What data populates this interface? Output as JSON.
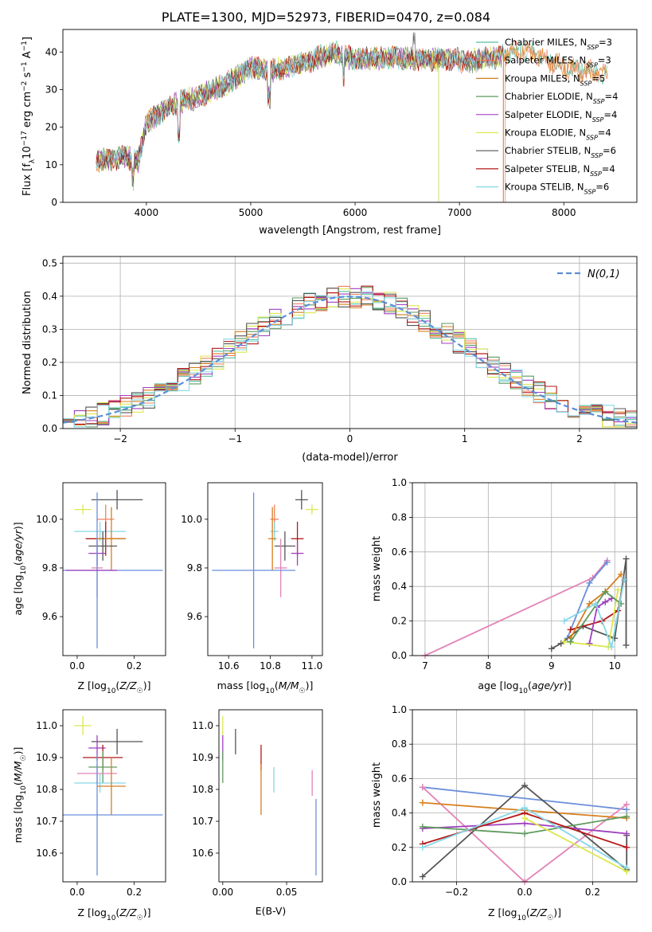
{
  "title": "PLATE=1300, MJD=52973, FIBERID=0470, z=0.084",
  "colors": {
    "chabrier_miles": "#55c1a5",
    "salpeter_miles": "#f07f61",
    "kroupa_miles": "#d67f1e",
    "chabrier_elodie": "#5f9a5f",
    "salpeter_elodie": "#a03fbf",
    "kroupa_elodie": "#dbe84f",
    "chabrier_stelib": "#555555",
    "salpeter_stelib": "#b41818",
    "kroupa_stelib": "#86d8e6",
    "line_blue": "#6a8fdb",
    "line_pink": "#e383b6",
    "normal_curve": "#5b8fd6"
  },
  "chart_data": [
    {
      "id": "spectrum",
      "type": "line",
      "title": "PLATE=1300, MJD=52973, FIBERID=0470, z=0.084",
      "xlabel": "wavelength [Angstrom, rest frame]",
      "ylabel": "Flux [f_λ10^-17 erg cm^-2 s^-1 A^-1]",
      "xlim": [
        3200,
        8700
      ],
      "ylim": [
        0,
        46
      ],
      "xticks": [
        4000,
        5000,
        6000,
        7000,
        8000
      ],
      "yticks": [
        0,
        10,
        20,
        30,
        40
      ],
      "grid": false,
      "legend_position": "top-right",
      "continuum": {
        "x": [
          3520,
          3800,
          3920,
          4000,
          4200,
          4350,
          4500,
          4800,
          5000,
          5200,
          5500,
          5800,
          6000,
          6300,
          6600,
          6900,
          7100,
          7400,
          7600,
          8000,
          8400
        ],
        "y": [
          11,
          12,
          11,
          21,
          25,
          27,
          28,
          32,
          36,
          35,
          37,
          40,
          38,
          38.5,
          38,
          38,
          37.5,
          39,
          40.5,
          36,
          34
        ]
      },
      "series": [
        {
          "name": "Chabrier MILES",
          "nssp": "3",
          "color_key": "chabrier_miles"
        },
        {
          "name": "Salpeter MILES",
          "nssp": "3",
          "color_key": "salpeter_miles"
        },
        {
          "name": "Kroupa MILES",
          "nssp": "5",
          "color_key": "kroupa_miles"
        },
        {
          "name": "Chabrier ELODIE",
          "nssp": "4",
          "color_key": "chabrier_elodie"
        },
        {
          "name": "Salpeter ELODIE",
          "nssp": "4",
          "color_key": "salpeter_elodie"
        },
        {
          "name": "Kroupa ELODIE",
          "nssp": "4",
          "color_key": "kroupa_elodie"
        },
        {
          "name": "Chabrier STELIB",
          "nssp": "6",
          "color_key": "chabrier_stelib"
        },
        {
          "name": "Salpeter STELIB",
          "nssp": "4",
          "color_key": "salpeter_stelib"
        },
        {
          "name": "Kroupa STELIB",
          "nssp": "6",
          "color_key": "kroupa_stelib"
        }
      ]
    },
    {
      "id": "residuals",
      "type": "line",
      "xlabel": "(data-model)/error",
      "ylabel": "Normed distribution",
      "xlim": [
        -2.5,
        2.5
      ],
      "ylim": [
        0,
        0.52
      ],
      "xticks": [
        -2,
        -1,
        0,
        1,
        2
      ],
      "xticklabels": [
        "−2",
        "−1",
        "0",
        "1",
        "2"
      ],
      "yticks": [
        0.0,
        0.1,
        0.2,
        0.3,
        0.4,
        0.5
      ],
      "yticklabels": [
        "0.0",
        "0.1",
        "0.2",
        "0.3",
        "0.4",
        "0.5"
      ],
      "grid": true,
      "legend_position": "top-right",
      "normal_label": "N(0,1)",
      "bin_width": 0.1,
      "histogram_series": [
        "chabrier_miles",
        "salpeter_miles",
        "kroupa_miles",
        "chabrier_elodie",
        "salpeter_elodie",
        "kroupa_elodie",
        "chabrier_stelib",
        "salpeter_stelib",
        "kroupa_stelib"
      ]
    },
    {
      "id": "z-age",
      "type": "scatter",
      "xlabel": "Z [log10(Z/Z☉)]",
      "ylabel": "age [log10(age/yr)]",
      "xlim": [
        -0.05,
        0.31
      ],
      "ylim": [
        9.44,
        10.15
      ],
      "xticks": [
        0.0,
        0.2
      ],
      "yticks": [
        9.6,
        9.8,
        10.0
      ],
      "points": [
        {
          "c": "chabrier_stelib",
          "x": 0.14,
          "xe": 0.09,
          "y": 10.08,
          "ye": 0.04
        },
        {
          "c": "kroupa_elodie",
          "x": 0.02,
          "xe": 0.03,
          "y": 10.04,
          "ye": 0.02
        },
        {
          "c": "salpeter_miles",
          "x": 0.1,
          "xe": 0.03,
          "y": 10.0,
          "ye": 0.06
        },
        {
          "c": "kroupa_stelib",
          "x": 0.08,
          "xe": 0.09,
          "y": 9.95,
          "ye": 0.04
        },
        {
          "c": "salpeter_stelib",
          "x": 0.1,
          "xe": 0.07,
          "y": 9.92,
          "ye": 0.07
        },
        {
          "c": "kroupa_miles",
          "x": 0.12,
          "xe": 0.05,
          "y": 9.92,
          "ye": 0.13
        },
        {
          "c": "chabrier_stelib",
          "x": 0.09,
          "xe": 0.05,
          "y": 9.89,
          "ye": 0.06
        },
        {
          "c": "salpeter_elodie",
          "x": 0.07,
          "xe": 0.03,
          "y": 9.86,
          "ye": 0.05
        },
        {
          "c": "line_pink",
          "x": 0.07,
          "xe": 0.02,
          "y": 9.8,
          "ye": 0.12
        },
        {
          "c": "line_blue",
          "x": 0.07,
          "xe": 0.23,
          "y": 9.79,
          "ye": 0.32
        },
        {
          "c": "salpeter_elodie",
          "x": 0.05,
          "xe": 0.09,
          "y": 9.79,
          "ye": 0.0
        }
      ]
    },
    {
      "id": "mass-age",
      "type": "scatter",
      "xlabel": "mass [log10(M/M☉)]",
      "ylabel": "",
      "xlim": [
        10.5,
        11.05
      ],
      "ylim": [
        9.44,
        10.15
      ],
      "xticks": [
        10.6,
        10.8,
        11.0
      ],
      "yticks": [
        9.6,
        9.8,
        10.0
      ],
      "points": [
        {
          "c": "chabrier_stelib",
          "x": 10.95,
          "xe": 0.03,
          "y": 10.08,
          "ye": 0.04
        },
        {
          "c": "kroupa_elodie",
          "x": 11.0,
          "xe": 0.03,
          "y": 10.04,
          "ye": 0.02
        },
        {
          "c": "salpeter_miles",
          "x": 10.82,
          "xe": 0.02,
          "y": 10.0,
          "ye": 0.06
        },
        {
          "c": "kroupa_stelib",
          "x": 10.82,
          "xe": 0.02,
          "y": 9.95,
          "ye": 0.04
        },
        {
          "c": "kroupa_miles",
          "x": 10.81,
          "xe": 0.02,
          "y": 9.92,
          "ye": 0.13
        },
        {
          "c": "salpeter_stelib",
          "x": 10.93,
          "xe": 0.03,
          "y": 9.92,
          "ye": 0.07
        },
        {
          "c": "chabrier_stelib",
          "x": 10.87,
          "xe": 0.05,
          "y": 9.89,
          "ye": 0.06
        },
        {
          "c": "salpeter_elodie",
          "x": 10.93,
          "xe": 0.03,
          "y": 9.86,
          "ye": 0.05
        },
        {
          "c": "line_pink",
          "x": 10.85,
          "xe": 0.03,
          "y": 9.8,
          "ye": 0.12
        },
        {
          "c": "line_blue",
          "x": 10.72,
          "xe": 0.2,
          "y": 9.79,
          "ye": 0.32
        }
      ]
    },
    {
      "id": "age-weight",
      "type": "line",
      "xlabel": "age [log10(age/yr)]",
      "ylabel": "mass weight",
      "xlim": [
        6.8,
        10.35
      ],
      "ylim": [
        0,
        1.0
      ],
      "xticks": [
        7,
        8,
        9,
        10
      ],
      "yticks": [
        0.0,
        0.2,
        0.4,
        0.6,
        0.8,
        1.0
      ],
      "grid": true,
      "series": [
        {
          "c": "line_pink",
          "x": [
            7.0,
            9.65,
            9.88
          ],
          "y": [
            0.0,
            0.45,
            0.55
          ]
        },
        {
          "c": "line_blue",
          "x": [
            9.25,
            9.6,
            9.88
          ],
          "y": [
            0.1,
            0.42,
            0.54
          ]
        },
        {
          "c": "chabrier_stelib",
          "x": [
            9.0,
            9.15,
            9.5,
            10.0,
            10.18,
            10.18
          ],
          "y": [
            0.04,
            0.07,
            0.17,
            0.1,
            0.56,
            0.06
          ]
        },
        {
          "c": "salpeter_stelib",
          "x": [
            9.3,
            9.8,
            10.05,
            10.15
          ],
          "y": [
            0.15,
            0.2,
            0.26,
            0.44
          ]
        },
        {
          "c": "kroupa_miles",
          "x": [
            9.3,
            9.6,
            9.85,
            10.1
          ],
          "y": [
            0.1,
            0.3,
            0.37,
            0.47
          ]
        },
        {
          "c": "salpeter_elodie",
          "x": [
            9.6,
            9.72,
            9.85,
            9.95
          ],
          "y": [
            0.07,
            0.28,
            0.31,
            0.33
          ]
        },
        {
          "c": "kroupa_elodie",
          "x": [
            9.2,
            9.9,
            10.05
          ],
          "y": [
            0.08,
            0.05,
            0.38
          ]
        },
        {
          "c": "chabrier_elodie",
          "x": [
            9.3,
            9.85,
            10.1
          ],
          "y": [
            0.08,
            0.37,
            0.3
          ]
        },
        {
          "c": "kroupa_stelib",
          "x": [
            9.2,
            9.7,
            9.95,
            10.15
          ],
          "y": [
            0.2,
            0.3,
            0.05,
            0.44
          ]
        }
      ]
    },
    {
      "id": "z-mass",
      "type": "scatter",
      "xlabel": "Z [log10(Z/Z☉)]",
      "ylabel": "mass [log10(M/M☉)]",
      "xlim": [
        -0.05,
        0.31
      ],
      "ylim": [
        10.51,
        11.05
      ],
      "xticks": [
        0.0,
        0.2
      ],
      "yticks": [
        10.6,
        10.7,
        10.8,
        10.9,
        11.0
      ],
      "points": [
        {
          "c": "kroupa_elodie",
          "x": 0.02,
          "xe": 0.03,
          "y": 11.0,
          "ye": 0.03
        },
        {
          "c": "chabrier_stelib",
          "x": 0.14,
          "xe": 0.09,
          "y": 10.95,
          "ye": 0.04
        },
        {
          "c": "salpeter_elodie",
          "x": 0.07,
          "xe": 0.03,
          "y": 10.93,
          "ye": 0.04
        },
        {
          "c": "salpeter_stelib",
          "x": 0.09,
          "xe": 0.07,
          "y": 10.9,
          "ye": 0.04
        },
        {
          "c": "chabrier_elodie",
          "x": 0.09,
          "xe": 0.05,
          "y": 10.87,
          "ye": 0.05
        },
        {
          "c": "line_pink",
          "x": 0.07,
          "xe": 0.07,
          "y": 10.85,
          "ye": 0.03
        },
        {
          "c": "kroupa_stelib",
          "x": 0.08,
          "xe": 0.09,
          "y": 10.82,
          "ye": 0.03
        },
        {
          "c": "kroupa_miles",
          "x": 0.12,
          "xe": 0.05,
          "y": 10.81,
          "ye": 0.09
        },
        {
          "c": "line_blue",
          "x": 0.07,
          "xe": 0.23,
          "y": 10.72,
          "ye": 0.19
        }
      ]
    },
    {
      "id": "ebv-mass",
      "type": "scatter",
      "xlabel": "E(B-V)",
      "ylabel": "",
      "xlim": [
        -0.003,
        0.078
      ],
      "ylim": [
        10.51,
        11.05
      ],
      "xticks": [
        0.0,
        0.05
      ],
      "xticklabels": [
        "0.00",
        "0.05"
      ],
      "yticks": [
        10.6,
        10.7,
        10.8,
        10.9,
        11.0
      ],
      "points": [
        {
          "c": "kroupa_elodie",
          "x": 0.0,
          "xe": 0,
          "y": 11.0,
          "ye": 0.03
        },
        {
          "c": "salpeter_elodie",
          "x": 0.0,
          "xe": 0,
          "y": 10.93,
          "ye": 0.04
        },
        {
          "c": "chabrier_elodie",
          "x": 0.0,
          "xe": 0,
          "y": 10.87,
          "ye": 0.05
        },
        {
          "c": "chabrier_stelib",
          "x": 0.01,
          "xe": 0,
          "y": 10.95,
          "ye": 0.04
        },
        {
          "c": "salpeter_stelib",
          "x": 0.03,
          "xe": 0,
          "y": 10.9,
          "ye": 0.04
        },
        {
          "c": "kroupa_miles",
          "x": 0.03,
          "xe": 0,
          "y": 10.8,
          "ye": 0.08
        },
        {
          "c": "kroupa_stelib",
          "x": 0.04,
          "xe": 0,
          "y": 10.83,
          "ye": 0.04
        },
        {
          "c": "line_pink",
          "x": 0.07,
          "xe": 0,
          "y": 10.82,
          "ye": 0.04
        },
        {
          "c": "line_blue",
          "x": 0.073,
          "xe": 0,
          "y": 10.65,
          "ye": 0.12
        }
      ]
    },
    {
      "id": "z-weight",
      "type": "line",
      "xlabel": "Z [log10(Z/Z☉)]",
      "ylabel": "mass weight",
      "xlim": [
        -0.33,
        0.33
      ],
      "ylim": [
        0,
        1.0
      ],
      "xticks": [
        -0.2,
        0.0,
        0.2
      ],
      "xticklabels": [
        "−0.2",
        "0.0",
        "0.2"
      ],
      "yticks": [
        0.0,
        0.2,
        0.4,
        0.6,
        0.8,
        1.0
      ],
      "grid": true,
      "series": [
        {
          "c": "line_blue",
          "x": [
            -0.3,
            0.3
          ],
          "y": [
            0.55,
            0.42
          ]
        },
        {
          "c": "line_pink",
          "x": [
            -0.3,
            0.0,
            0.3
          ],
          "y": [
            0.55,
            0.0,
            0.45
          ]
        },
        {
          "c": "kroupa_miles",
          "x": [
            -0.3,
            0.3
          ],
          "y": [
            0.46,
            0.37
          ]
        },
        {
          "c": "chabrier_stelib",
          "x": [
            -0.3,
            0.0,
            0.3,
            0.3
          ],
          "y": [
            0.03,
            0.56,
            0.07,
            0.27
          ]
        },
        {
          "c": "salpeter_elodie",
          "x": [
            -0.3,
            0.0,
            0.3
          ],
          "y": [
            0.31,
            0.34,
            0.28
          ]
        },
        {
          "c": "chabrier_elodie",
          "x": [
            -0.3,
            0.0,
            0.3
          ],
          "y": [
            0.32,
            0.28,
            0.38
          ]
        },
        {
          "c": "salpeter_stelib",
          "x": [
            -0.3,
            0.0,
            0.3
          ],
          "y": [
            0.22,
            0.4,
            0.2
          ]
        },
        {
          "c": "kroupa_stelib",
          "x": [
            -0.3,
            0.0,
            0.3
          ],
          "y": [
            0.2,
            0.43,
            0.08
          ]
        },
        {
          "c": "kroupa_elodie",
          "x": [
            0.0,
            0.3
          ],
          "y": [
            0.37,
            0.06
          ]
        }
      ]
    }
  ]
}
